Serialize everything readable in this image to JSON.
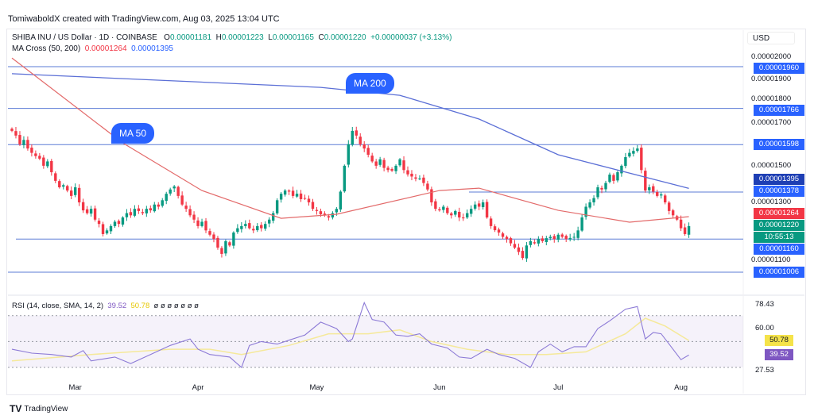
{
  "credit": "TomiwaboldX created with TradingView.com, Aug 03, 2025 13:04 UTC",
  "symbol": "SHIBA INU / US Dollar · 1D · COINBASE",
  "ohlc": {
    "o_label": "O",
    "o": "0.00001181",
    "h_label": "H",
    "h": "0.00001223",
    "l_label": "L",
    "l": "0.00001165",
    "c_label": "C",
    "c": "0.00001220",
    "change": "+0.00000037 (+3.13%)"
  },
  "ma": {
    "label": "MA Cross (50, 200)",
    "ma50": "0.00001264",
    "ma200": "0.00001395"
  },
  "currency": "USD",
  "annotations": {
    "ma200": "MA 200",
    "ma50": "MA 50"
  },
  "price_ticks": [
    "0.00002000",
    "0.00001900",
    "0.00001800",
    "0.00001700",
    "0.00001500",
    "0.00001300",
    "0.00001100"
  ],
  "price_labels": [
    {
      "text": "0.00001960",
      "level": 1960,
      "color": "#2962ff"
    },
    {
      "text": "0.00001766",
      "level": 1766,
      "color": "#2962ff"
    },
    {
      "text": "0.00001598",
      "level": 1598,
      "color": "#2962ff"
    },
    {
      "text": "0.00001395",
      "level": 1395,
      "color": "#1e3fb4"
    },
    {
      "text": "0.00001378",
      "level": 1378,
      "color": "#2962ff"
    },
    {
      "text": "0.00001264",
      "level": 1264,
      "color": "#f23645"
    },
    {
      "text": "0.00001220",
      "level": 1220,
      "color": "#089981"
    },
    {
      "text": "0.00001160",
      "level": 1160,
      "color": "#2962ff"
    },
    {
      "text": "0.00001006",
      "level": 1006,
      "color": "#2962ff"
    }
  ],
  "countdown": "10:55:13",
  "rsi": {
    "label": "RSI (14, close, SMA, 14, 2)",
    "value": "39.52",
    "sma": "50.78",
    "extras": "ø ø ø ø ø ø ø",
    "ticks": [
      "78.43",
      "60.00",
      "27.53"
    ]
  },
  "brand": "TradingView",
  "chart_data": {
    "type": "candlestick",
    "title": "SHIBA INU / US Dollar · 1D · COINBASE",
    "units": "1e-8 USD",
    "start_date": "2025-02-13",
    "x_ticks": [
      {
        "label": "Mar",
        "day": 16
      },
      {
        "label": "Apr",
        "day": 47
      },
      {
        "label": "May",
        "day": 77
      },
      {
        "label": "Jun",
        "day": 108
      },
      {
        "label": "Jul",
        "day": 138
      },
      {
        "label": "Aug",
        "day": 169
      }
    ],
    "ylim": [
      960,
      2040
    ],
    "closes": [
      1662,
      1640,
      1600,
      1620,
      1580,
      1560,
      1545,
      1533,
      1500,
      1520,
      1470,
      1430,
      1400,
      1410,
      1385,
      1360,
      1400,
      1330,
      1293,
      1280,
      1300,
      1250,
      1230,
      1183,
      1200,
      1220,
      1240,
      1230,
      1260,
      1280,
      1270,
      1300,
      1290,
      1280,
      1300,
      1293,
      1320,
      1310,
      1340,
      1370,
      1390,
      1404,
      1360,
      1320,
      1300,
      1270,
      1250,
      1220,
      1240,
      1200,
      1180,
      1160,
      1120,
      1091,
      1150,
      1130,
      1190,
      1210,
      1220,
      1230,
      1210,
      1200,
      1220,
      1210,
      1230,
      1250,
      1280,
      1340,
      1370,
      1385,
      1380,
      1360,
      1370,
      1345,
      1349,
      1330,
      1300,
      1290,
      1275,
      1270,
      1260,
      1280,
      1300,
      1380,
      1500,
      1600,
      1662,
      1640,
      1600,
      1580,
      1551,
      1520,
      1500,
      1530,
      1490,
      1480,
      1477,
      1500,
      1530,
      1480,
      1460,
      1450,
      1440,
      1441,
      1420,
      1390,
      1330,
      1300,
      1293,
      1310,
      1280,
      1270,
      1290,
      1260,
      1256,
      1280,
      1300,
      1320,
      1310,
      1330,
      1260,
      1220,
      1201,
      1190,
      1170,
      1160,
      1140,
      1120,
      1100,
      1072,
      1130,
      1150,
      1140,
      1160,
      1150,
      1164,
      1170,
      1160,
      1180,
      1170,
      1160,
      1165,
      1170,
      1200,
      1260,
      1310,
      1330,
      1350,
      1400,
      1390,
      1420,
      1459,
      1430,
      1470,
      1500,
      1540,
      1560,
      1569,
      1580,
      1480,
      1385,
      1400,
      1380,
      1360,
      1367,
      1330,
      1290,
      1270,
      1250,
      1210,
      1183,
      1220
    ],
    "ma50": [
      [
        0,
        2000
      ],
      [
        28,
        1606
      ],
      [
        48,
        1385
      ],
      [
        68,
        1256
      ],
      [
        82,
        1275
      ],
      [
        108,
        1385
      ],
      [
        118,
        1396
      ],
      [
        138,
        1293
      ],
      [
        156,
        1238
      ],
      [
        171,
        1264
      ]
    ],
    "ma200": [
      [
        0,
        1927
      ],
      [
        78,
        1864
      ],
      [
        98,
        1827
      ],
      [
        118,
        1717
      ],
      [
        138,
        1551
      ],
      [
        171,
        1395
      ]
    ],
    "horizontal_levels": [
      1960,
      1766,
      1598,
      1378,
      1160,
      1006
    ],
    "rsi_series": [
      [
        0,
        44
      ],
      [
        5,
        41
      ],
      [
        10,
        40
      ],
      [
        15,
        38
      ],
      [
        18,
        43
      ],
      [
        20,
        35
      ],
      [
        26,
        38
      ],
      [
        30,
        33
      ],
      [
        35,
        40
      ],
      [
        40,
        47
      ],
      [
        45,
        52
      ],
      [
        47,
        44
      ],
      [
        50,
        40
      ],
      [
        55,
        38
      ],
      [
        58,
        30
      ],
      [
        60,
        47
      ],
      [
        63,
        50
      ],
      [
        67,
        48
      ],
      [
        70,
        51
      ],
      [
        74,
        55
      ],
      [
        78,
        65
      ],
      [
        82,
        60
      ],
      [
        85,
        50
      ],
      [
        86,
        52
      ],
      [
        89,
        80
      ],
      [
        91,
        67
      ],
      [
        94,
        65
      ],
      [
        97,
        55
      ],
      [
        100,
        54
      ],
      [
        103,
        56
      ],
      [
        106,
        48
      ],
      [
        110,
        45
      ],
      [
        113,
        38
      ],
      [
        116,
        37
      ],
      [
        120,
        44
      ],
      [
        123,
        40
      ],
      [
        127,
        37
      ],
      [
        131,
        30
      ],
      [
        133,
        42
      ],
      [
        136,
        48
      ],
      [
        139,
        42
      ],
      [
        142,
        46
      ],
      [
        145,
        46
      ],
      [
        148,
        60
      ],
      [
        151,
        66
      ],
      [
        155,
        75
      ],
      [
        158,
        77
      ],
      [
        160,
        52
      ],
      [
        162,
        57
      ],
      [
        164,
        56
      ],
      [
        166,
        48
      ],
      [
        169,
        36
      ],
      [
        171,
        39.52
      ]
    ],
    "rsi_sma": [
      [
        0,
        35
      ],
      [
        20,
        40
      ],
      [
        40,
        44
      ],
      [
        50,
        44
      ],
      [
        58,
        40
      ],
      [
        70,
        47
      ],
      [
        80,
        56
      ],
      [
        90,
        56
      ],
      [
        98,
        59
      ],
      [
        106,
        50
      ],
      [
        115,
        44
      ],
      [
        125,
        40
      ],
      [
        135,
        40
      ],
      [
        145,
        42
      ],
      [
        155,
        56
      ],
      [
        160,
        68
      ],
      [
        165,
        62
      ],
      [
        171,
        50.78
      ]
    ],
    "rsi_ylim": [
      27.53,
      78.43
    ],
    "rsi_bands": [
      70,
      50,
      30
    ]
  }
}
